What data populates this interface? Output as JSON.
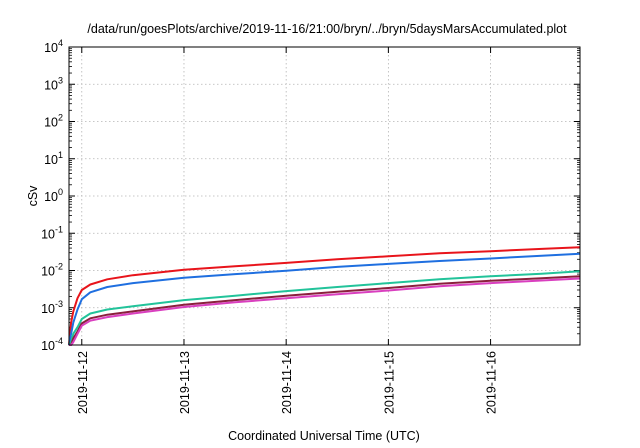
{
  "chart_data": {
    "type": "line",
    "title": "/data/run/goesPlots/archive/2019-11-16/21:00/bryn/../bryn/5daysMarsAccumulated.plot",
    "xlabel": "Coordinated Universal Time (UTC)",
    "ylabel": "cSv",
    "y_scale": "log",
    "ylim": [
      0.0001,
      10000
    ],
    "y_ticks": [
      {
        "value": 0.0001,
        "base": "10",
        "exp": "-4"
      },
      {
        "value": 0.001,
        "base": "10",
        "exp": "-3"
      },
      {
        "value": 0.01,
        "base": "10",
        "exp": "-2"
      },
      {
        "value": 0.1,
        "base": "10",
        "exp": "-1"
      },
      {
        "value": 1,
        "base": "10",
        "exp": "0"
      },
      {
        "value": 10,
        "base": "10",
        "exp": "1"
      },
      {
        "value": 100,
        "base": "10",
        "exp": "2"
      },
      {
        "value": 1000,
        "base": "10",
        "exp": "3"
      },
      {
        "value": 10000,
        "base": "10",
        "exp": "4"
      }
    ],
    "xlim": [
      "2019-11-11T21:00",
      "2019-11-16T21:00"
    ],
    "x_ticks": [
      "2019-11-12",
      "2019-11-13",
      "2019-11-14",
      "2019-11-15",
      "2019-11-16"
    ],
    "grid": true,
    "x": [
      "2019-11-11T21:00",
      "2019-11-11T21:30",
      "2019-11-11T22:00",
      "2019-11-11T23:00",
      "2019-11-12T00:00",
      "2019-11-12T02:00",
      "2019-11-12T06:00",
      "2019-11-12T12:00",
      "2019-11-13T00:00",
      "2019-11-13T12:00",
      "2019-11-14T00:00",
      "2019-11-14T12:00",
      "2019-11-15T00:00",
      "2019-11-15T12:00",
      "2019-11-16T00:00",
      "2019-11-16T12:00",
      "2019-11-16T21:00"
    ],
    "series": [
      {
        "color": "#e8141b",
        "values": [
          0.0001,
          0.0004,
          0.0008,
          0.0018,
          0.003,
          0.0042,
          0.0058,
          0.0075,
          0.0105,
          0.013,
          0.016,
          0.02,
          0.024,
          0.029,
          0.033,
          0.038,
          0.042
        ]
      },
      {
        "color": "#1f6fe0",
        "values": [
          0.0001,
          0.0002,
          0.0004,
          0.0009,
          0.0017,
          0.0026,
          0.0036,
          0.0046,
          0.0064,
          0.008,
          0.0098,
          0.0125,
          0.015,
          0.018,
          0.021,
          0.025,
          0.028
        ]
      },
      {
        "color": "#22c39a",
        "values": [
          0.0001,
          0.00012,
          0.0002,
          0.0003,
          0.0005,
          0.0007,
          0.0009,
          0.0011,
          0.0016,
          0.0021,
          0.0028,
          0.0036,
          0.0046,
          0.0058,
          0.007,
          0.0082,
          0.0095
        ]
      },
      {
        "color": "#8a1f3c",
        "values": [
          0.0001,
          0.0001,
          0.00015,
          0.00023,
          0.00038,
          0.00052,
          0.00065,
          0.0008,
          0.0012,
          0.0016,
          0.0021,
          0.0027,
          0.0034,
          0.0044,
          0.0053,
          0.0062,
          0.007
        ]
      },
      {
        "color": "#d93fbf",
        "values": [
          0.0001,
          0.0001,
          0.00012,
          0.0002,
          0.00033,
          0.00045,
          0.00056,
          0.0007,
          0.00105,
          0.0014,
          0.0018,
          0.0023,
          0.0029,
          0.0038,
          0.0046,
          0.0054,
          0.0061
        ]
      }
    ]
  }
}
